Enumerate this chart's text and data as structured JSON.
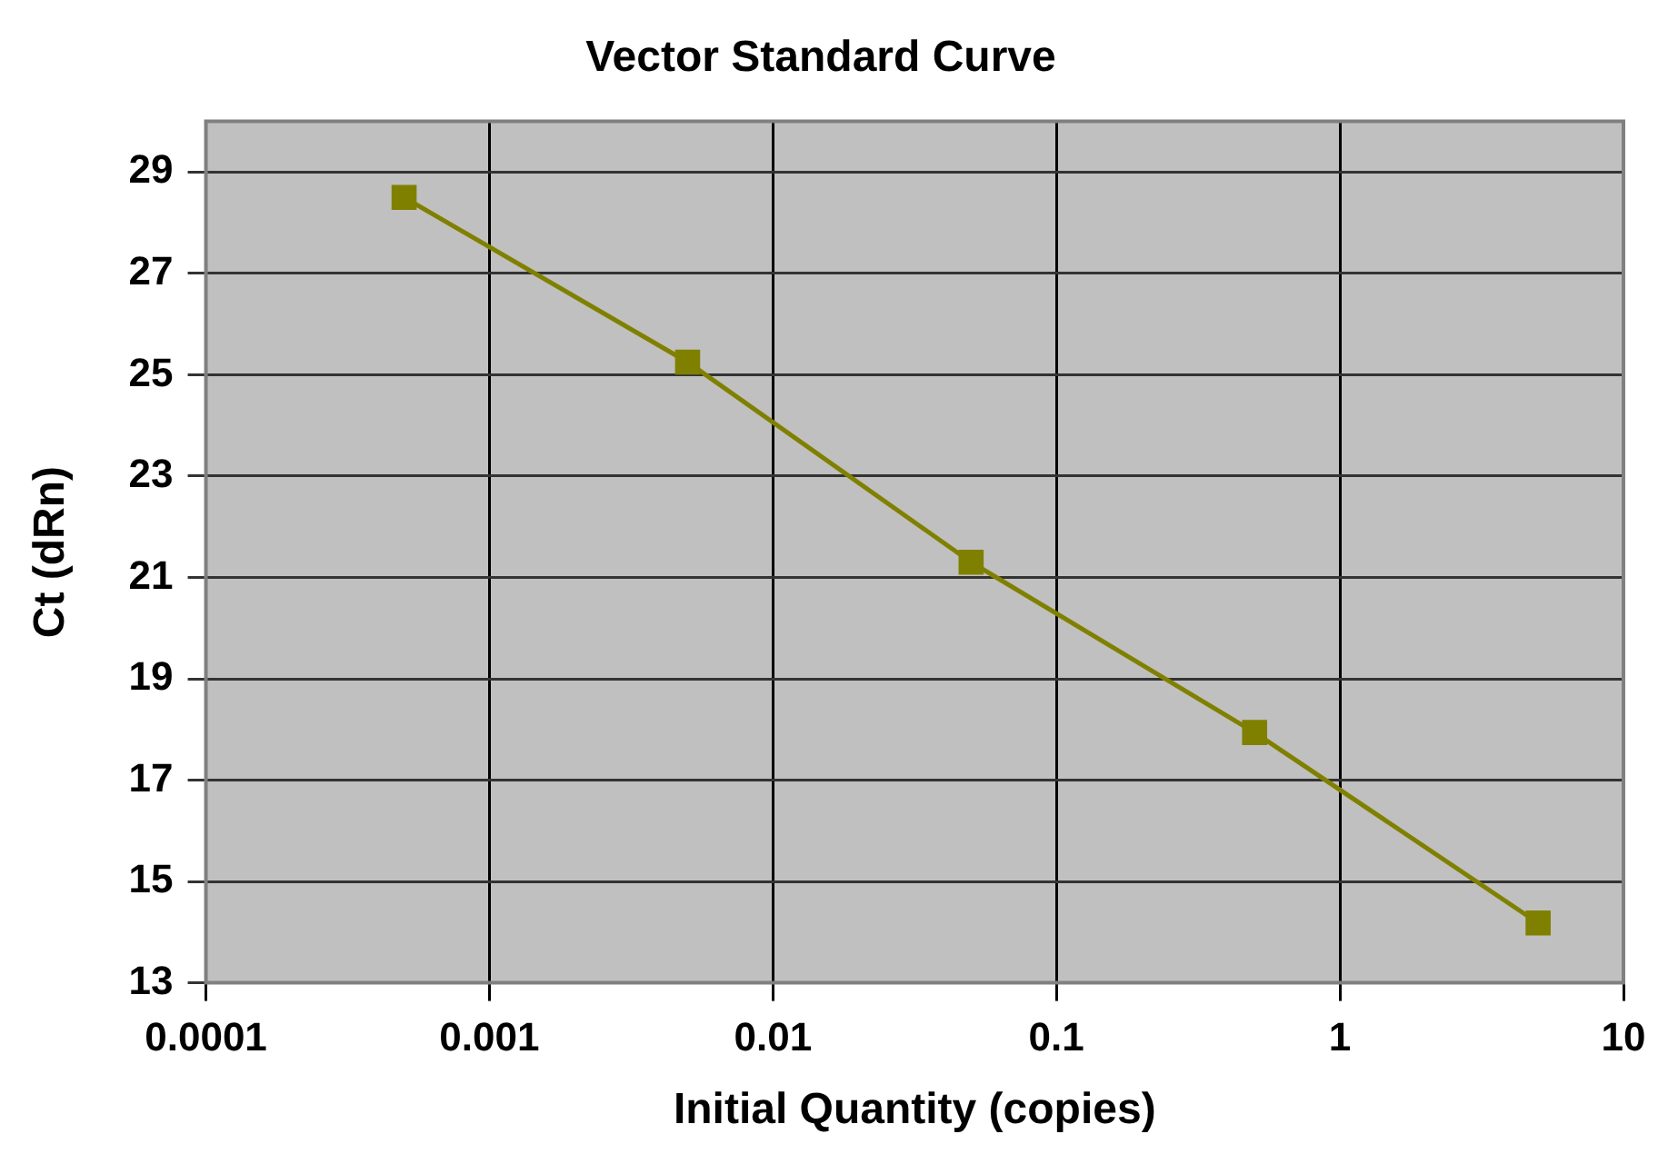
{
  "chart_data": {
    "type": "line",
    "title": "Vector Standard Curve",
    "xlabel": "Initial Quantity (copies)",
    "ylabel": "Ct (dRn)",
    "x": [
      0.0005,
      0.005,
      0.05,
      0.5,
      5
    ],
    "series": [
      {
        "color": "#808000",
        "values": [
          28.5,
          25.25,
          21.3,
          17.94,
          14.18
        ]
      }
    ],
    "log": "x",
    "xlim": [
      0.0001,
      10
    ],
    "xticks": [
      0.0001,
      0.001,
      0.01,
      0.1,
      1,
      10
    ],
    "ylim": [
      13,
      30
    ],
    "yticks": [
      13,
      15,
      17,
      19,
      21,
      23,
      25,
      27,
      29
    ],
    "grid": true,
    "legend": false,
    "marker": "square",
    "line_style": "solid"
  }
}
